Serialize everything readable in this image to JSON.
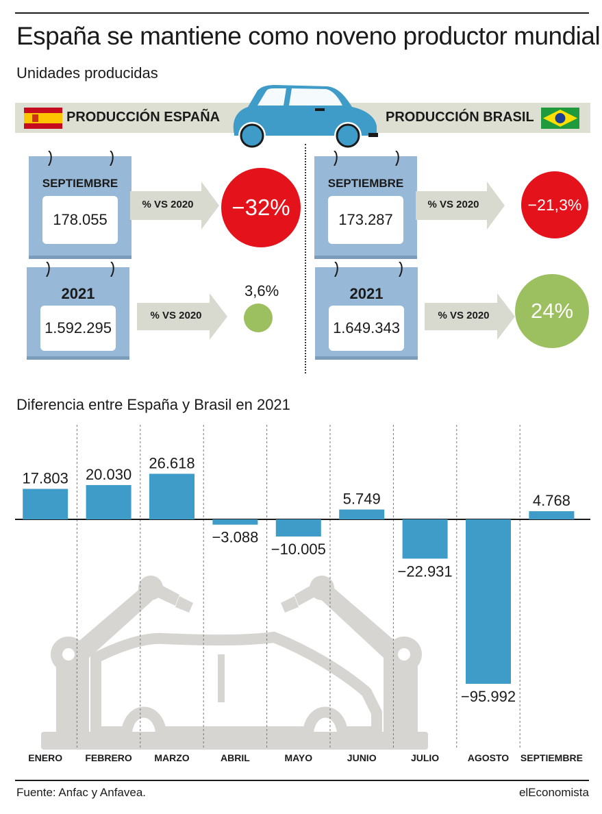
{
  "header": {
    "title": "España se mantiene como noveno productor mundial",
    "subtitle": "Unidades producidas"
  },
  "spain": {
    "label": "PRODUCCIÓN ESPAÑA",
    "september": {
      "label": "SEPTIEMBRE",
      "value": "178.055",
      "compare_label": "% VS 2020",
      "change": "−32%"
    },
    "year": {
      "label": "2021",
      "value": "1.592.295",
      "compare_label": "% VS 2020",
      "change": "3,6%"
    }
  },
  "brazil": {
    "label": "PRODUCCIÓN BRASIL",
    "september": {
      "label": "SEPTIEMBRE",
      "value": "173.287",
      "compare_label": "% VS 2020",
      "change": "−21,3%"
    },
    "year": {
      "label": "2021",
      "value": "1.649.343",
      "compare_label": "% VS 2020",
      "change": "24%"
    }
  },
  "colors": {
    "bar": "#3f9cc9",
    "decrease": "#e3121b",
    "increase": "#9cbf5f",
    "calendar": "#97b8d6",
    "arrow": "#d9dacf",
    "illustration": "#d6d5d1"
  },
  "chart_data": {
    "type": "bar",
    "title": "Diferencia entre España y Brasil en 2021",
    "categories": [
      "ENERO",
      "FEBRERO",
      "MARZO",
      "ABRIL",
      "MAYO",
      "JUNIO",
      "JULIO",
      "AGOSTO",
      "SEPTIEMBRE"
    ],
    "values": [
      17803,
      20030,
      26618,
      -3088,
      -10005,
      5749,
      -22931,
      -95992,
      4768
    ],
    "value_labels": [
      "17.803",
      "20.030",
      "26.618",
      "−3.088",
      "−10.005",
      "5.749",
      "−22.931",
      "−95.992",
      "4.768"
    ],
    "xlabel": "",
    "ylabel": "",
    "grid": false,
    "legend": "none"
  },
  "footer": {
    "source": "Fuente: Anfac y Anfavea.",
    "brand": "elEconomista"
  }
}
